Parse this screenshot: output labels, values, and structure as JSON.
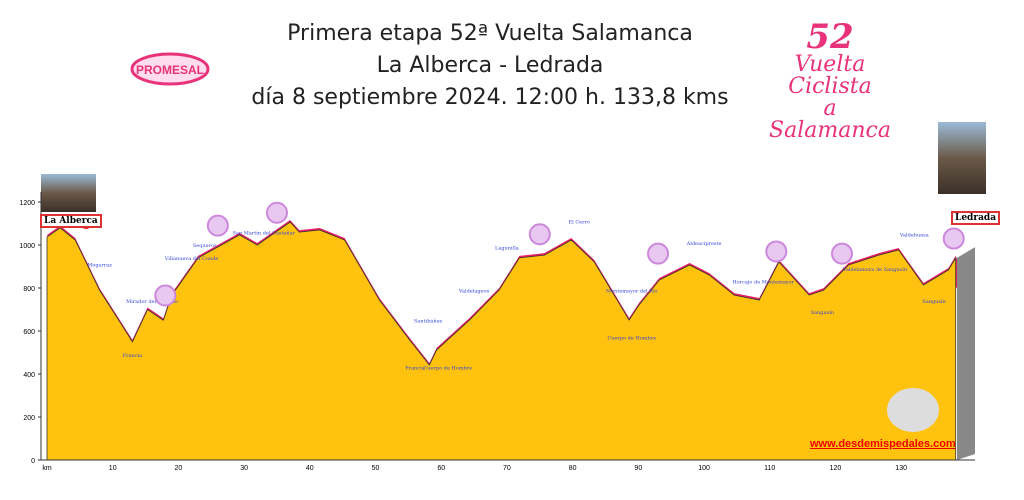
{
  "header": {
    "line1": "Primera etapa 52ª Vuelta Salamanca",
    "line2": "La Alberca - Ledrada",
    "line3": "día 8 septiembre 2024. 12:00 h. 133,8 kms"
  },
  "logos": {
    "left": "PROMESAL",
    "right_number": "52",
    "right_line1": "Vuelta Ciclista",
    "right_line2": "a Salamanca"
  },
  "start": "La Alberca",
  "finish": "Ledrada",
  "url": "www.desdemispedales.com",
  "colors": {
    "profile": "#ffc20e",
    "band": "#ec1f63",
    "sign": "#cc88dd",
    "text": "#3344dd"
  },
  "chart_data": {
    "type": "area",
    "title": "Primera etapa 52ª Vuelta Salamanca",
    "xlabel": "km",
    "ylabel": "",
    "xlim": [
      0,
      138.5
    ],
    "ylim": [
      0,
      1200
    ],
    "xticks": [
      "km",
      "10",
      "20",
      "30",
      "40",
      "50",
      "60",
      "70",
      "80",
      "90",
      "100",
      "110",
      "120",
      "130"
    ],
    "yticks": [
      "0",
      "200",
      "400",
      "600",
      "800",
      "1000",
      "1200"
    ],
    "x": [
      0,
      2,
      4.3,
      8,
      13,
      15.3,
      17.7,
      19,
      23,
      29.3,
      32,
      37,
      38.4,
      41.5,
      45.3,
      50.6,
      55.2,
      58.2,
      59.3,
      64.3,
      68.8,
      71.9,
      75.7,
      79.8,
      83.3,
      88.6,
      90.1,
      93.2,
      97.8,
      100.8,
      104.6,
      108.4,
      111.4,
      116,
      118.2,
      122,
      126.6,
      129.6,
      133.4,
      137.2,
      138.3
    ],
    "y": [
      1037,
      1080,
      1023,
      790,
      550,
      700,
      650,
      767,
      940,
      1047,
      1000,
      1107,
      1060,
      1070,
      1023,
      744,
      558,
      442,
      512,
      651,
      790,
      940,
      953,
      1023,
      921,
      651,
      721,
      837,
      907,
      860,
      767,
      744,
      921,
      767,
      790,
      907,
      953,
      977,
      814,
      884,
      940
    ],
    "annotations": [
      {
        "km": 8,
        "m": 900,
        "text": "Mogarraz"
      },
      {
        "km": 16,
        "m": 730,
        "text": "Mirador del Cozuelo"
      },
      {
        "km": 22,
        "m": 930,
        "text": "Villanueva del Conde"
      },
      {
        "km": 24,
        "m": 990,
        "text": "Sequeros"
      },
      {
        "km": 33,
        "m": 1050,
        "text": "San Martín del Castañar"
      },
      {
        "km": 13,
        "m": 480,
        "text": "Francia"
      },
      {
        "km": 58,
        "m": 640,
        "text": "Santibáñez"
      },
      {
        "km": 56,
        "m": 420,
        "text": "Francia"
      },
      {
        "km": 61,
        "m": 420,
        "text": "Cuerpo de Hombre"
      },
      {
        "km": 65,
        "m": 780,
        "text": "Valdelageve"
      },
      {
        "km": 70,
        "m": 980,
        "text": "Lagunilla"
      },
      {
        "km": 81,
        "m": 1100,
        "text": "El Cerro"
      },
      {
        "km": 89,
        "m": 780,
        "text": "Montemayor del Río"
      },
      {
        "km": 89,
        "m": 560,
        "text": "Cuerpo de Hombre"
      },
      {
        "km": 100,
        "m": 1000,
        "text": "Aldeacipreste"
      },
      {
        "km": 109,
        "m": 820,
        "text": "Horcajo de Montemayor"
      },
      {
        "km": 118,
        "m": 680,
        "text": "Sangusín"
      },
      {
        "km": 126,
        "m": 880,
        "text": "Valdelamora de Sangusín"
      },
      {
        "km": 132,
        "m": 1040,
        "text": "Valdehuesa"
      },
      {
        "km": 135,
        "m": 730,
        "text": "Sangusín"
      }
    ]
  }
}
